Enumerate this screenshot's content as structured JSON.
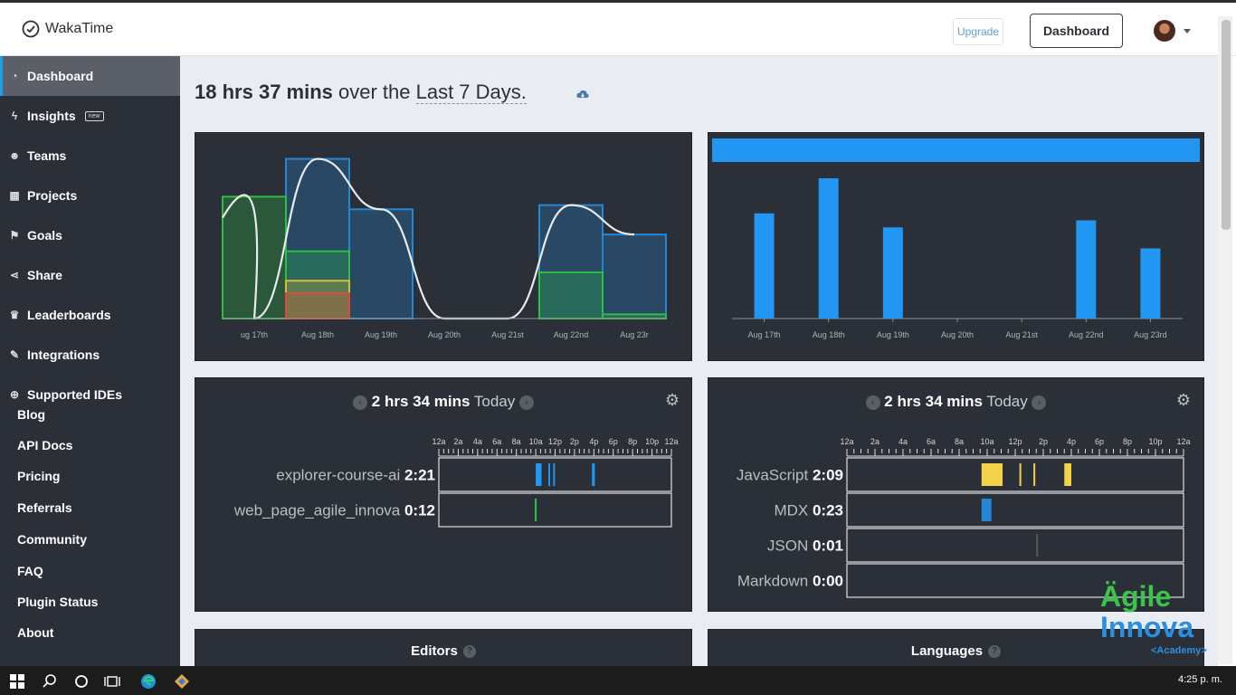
{
  "app": {
    "logo_text": "WakaTime",
    "upgrade_label": "Upgrade",
    "dashboard_label": "Dashboard"
  },
  "sidebar": {
    "items": [
      {
        "label": "Dashboard",
        "icon": "dashboard-icon"
      },
      {
        "label": "Insights",
        "icon": "bolt-icon",
        "badge": "new"
      },
      {
        "label": "Teams",
        "icon": "users-icon"
      },
      {
        "label": "Projects",
        "icon": "grid-icon"
      },
      {
        "label": "Goals",
        "icon": "flag-icon"
      },
      {
        "label": "Share",
        "icon": "share-icon"
      },
      {
        "label": "Leaderboards",
        "icon": "trophy-icon"
      },
      {
        "label": "Integrations",
        "icon": "wrench-icon"
      },
      {
        "label": "Supported IDEs",
        "icon": "plus-circle-icon"
      }
    ],
    "links": [
      "Blog",
      "API Docs",
      "Pricing",
      "Referrals",
      "Community",
      "FAQ",
      "Plugin Status",
      "About"
    ]
  },
  "summary": {
    "hours": "18 hrs",
    "mins": "37 mins",
    "middle": " over the ",
    "range": "Last 7 Days."
  },
  "chart_data": [
    {
      "type": "area",
      "categories": [
        "ug 17th",
        "Aug 18th",
        "Aug 19th",
        "Aug 20th",
        "Aug 21st",
        "Aug 22nd",
        "Aug 23r"
      ],
      "series": [
        {
          "values": [
            0,
            3.8,
            2.6,
            0,
            0,
            2.7,
            2.0
          ]
        },
        {
          "values": [
            2.9,
            1.6,
            0,
            0,
            0,
            1.1,
            0.1
          ]
        },
        {
          "values": [
            0,
            0.9,
            0,
            0,
            0,
            0,
            0
          ]
        },
        {
          "values": [
            0,
            0.6,
            0,
            0,
            0,
            0,
            0
          ]
        }
      ],
      "colors": [
        "#2387d6",
        "#2bbf44",
        "#e0b838",
        "#e04a3a"
      ],
      "ylim": [
        0,
        4.2
      ]
    },
    {
      "type": "bar",
      "categories": [
        "Aug 17th",
        "Aug 18th",
        "Aug 19th",
        "Aug 20th",
        "Aug 21st",
        "Aug 22nd",
        "Aug 23rd"
      ],
      "values": [
        3.0,
        4.0,
        2.6,
        0,
        0,
        2.8,
        2.0
      ],
      "colors": [
        "#2196f3"
      ]
    },
    {
      "type": "bar",
      "title_time": "2 hrs 34 mins",
      "title_suffix": "Today",
      "ticks": [
        "12a",
        "2a",
        "4a",
        "6a",
        "8a",
        "10a",
        "12p",
        "2p",
        "4p",
        "6p",
        "8p",
        "10p",
        "12a"
      ],
      "rows": [
        {
          "name": "explorer-course-ai",
          "time": "2:21",
          "color": "#2196f3",
          "blocks": [
            [
              10.0,
              10.6
            ],
            [
              11.3,
              11.4
            ],
            [
              11.8,
              11.9
            ],
            [
              15.8,
              16.1
            ]
          ]
        },
        {
          "name": "web_page_agile_innova",
          "time": "0:12",
          "color": "#2bbf44",
          "blocks": [
            [
              9.9,
              10.1
            ]
          ]
        }
      ]
    },
    {
      "type": "bar",
      "title_time": "2 hrs 34 mins",
      "title_suffix": "Today",
      "ticks": [
        "12a",
        "2a",
        "4a",
        "6a",
        "8a",
        "10a",
        "12p",
        "2p",
        "4p",
        "6p",
        "8p",
        "10p",
        "12a"
      ],
      "rows": [
        {
          "name": "JavaScript",
          "time": "2:09",
          "color": "#f3d34a",
          "blocks": [
            [
              9.6,
              11.1
            ],
            [
              12.3,
              12.4
            ],
            [
              13.3,
              13.4
            ],
            [
              15.5,
              16.0
            ]
          ]
        },
        {
          "name": "MDX",
          "time": "0:23",
          "color": "#2387d6",
          "blocks": [
            [
              9.6,
              10.3
            ]
          ]
        },
        {
          "name": "JSON",
          "time": "0:01",
          "color": "#555a60",
          "blocks": [
            [
              13.5,
              13.55
            ]
          ]
        },
        {
          "name": "Markdown",
          "time": "0:00",
          "color": "#555a60",
          "blocks": []
        }
      ]
    }
  ],
  "editors_title": "Editors",
  "languages_title": "Languages",
  "watermark": {
    "line1": "Ägile",
    "line2": "Innova",
    "line3": "<Academy>"
  },
  "taskbar": {
    "clock": "4:25 p. m."
  }
}
